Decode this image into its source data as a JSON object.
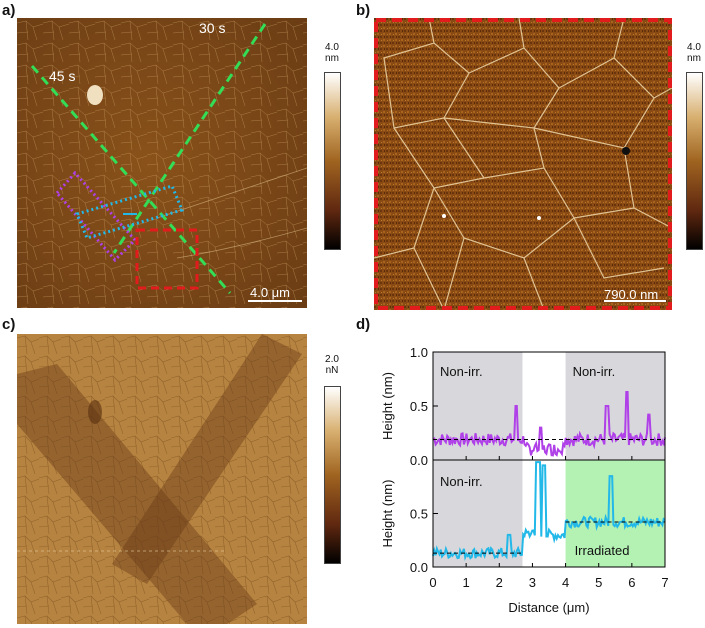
{
  "panels": {
    "a": {
      "label": "a)",
      "cbar_max": "4.0",
      "cbar_unit": "nm",
      "ann_45": "45 s",
      "ann_30": "30 s",
      "scalebar": "4.0 μm"
    },
    "b": {
      "label": "b)",
      "cbar_max": "4.0",
      "cbar_unit": "nm",
      "scalebar": "790.0 nm"
    },
    "c": {
      "label": "c)",
      "cbar_max": "2.0",
      "cbar_unit": "nN"
    },
    "d": {
      "label": "d)"
    }
  },
  "colors": {
    "afm_dark": "#6a3c14",
    "afm_mid": "#a0641e",
    "lfm": "#b68340",
    "green_line": "#33dd55",
    "red_box": "#e21c1c",
    "purple": "#b040e8",
    "cyan": "#22b8e8"
  },
  "chart_data": {
    "type": "line",
    "xlabel": "Distance (μm)",
    "x_ticks": [
      "0",
      "1",
      "2",
      "3",
      "4",
      "5",
      "6",
      "7"
    ],
    "xlim": [
      0,
      7
    ],
    "subplots": [
      {
        "ylabel": "Height (nm)",
        "ylim": [
          0,
          1.0
        ],
        "y_ticks": [
          "0.0",
          "0.5",
          "1.0"
        ],
        "series": [
          {
            "name": "purple profile",
            "color": "#b040e8",
            "baseline": 0.19
          }
        ],
        "shaded_regions": [
          {
            "x0": 0,
            "x1": 2.7,
            "label": "Non-irr.",
            "color": "#d8d8dc"
          },
          {
            "x0": 4.0,
            "x1": 7.0,
            "label": "Non-irr.",
            "color": "#d8d8dc"
          }
        ]
      },
      {
        "ylabel": "Height (nm)",
        "ylim": [
          0,
          1.0
        ],
        "y_ticks": [
          "0.0",
          "0.5"
        ],
        "series": [
          {
            "name": "cyan profile",
            "color": "#22b8e8",
            "baselines": [
              0.13,
              0.42
            ]
          }
        ],
        "shaded_regions": [
          {
            "x0": 0,
            "x1": 2.7,
            "label": "Non-irr.",
            "color": "#d8d8dc"
          },
          {
            "x0": 4.0,
            "x1": 7.0,
            "label": "Irradiated",
            "color": "#b4f2b4"
          }
        ]
      }
    ]
  }
}
